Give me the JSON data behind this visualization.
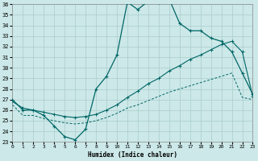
{
  "xlabel": "Humidex (Indice chaleur)",
  "bg_color": "#cce8e8",
  "line_color": "#006666",
  "grid_color": "#aacccc",
  "xlim": [
    0,
    23
  ],
  "ylim": [
    23,
    36
  ],
  "yticks": [
    23,
    24,
    25,
    26,
    27,
    28,
    29,
    30,
    31,
    32,
    33,
    34,
    35,
    36
  ],
  "xticks": [
    0,
    1,
    2,
    3,
    4,
    5,
    6,
    7,
    8,
    9,
    10,
    11,
    12,
    13,
    14,
    15,
    16,
    17,
    18,
    19,
    20,
    21,
    22,
    23
  ],
  "curve1_x": [
    0,
    1,
    2,
    3,
    4,
    5,
    6,
    7,
    8,
    9,
    10,
    11,
    12,
    13,
    14,
    15,
    16,
    17,
    18,
    19,
    20,
    21,
    22,
    23
  ],
  "curve1_y": [
    27.0,
    26.0,
    26.0,
    25.5,
    24.5,
    23.5,
    23.2,
    24.2,
    28.0,
    29.2,
    31.2,
    36.2,
    35.5,
    36.3,
    36.2,
    36.5,
    34.2,
    33.5,
    33.5,
    32.8,
    32.5,
    31.5,
    29.5,
    27.5
  ],
  "curve2_x": [
    0,
    1,
    2,
    3,
    4,
    5,
    6,
    7,
    8,
    9,
    10,
    11,
    12,
    13,
    14,
    15,
    16,
    17,
    18,
    19,
    20,
    21,
    22,
    23
  ],
  "curve2_y": [
    26.8,
    26.2,
    26.0,
    25.8,
    25.6,
    25.4,
    25.3,
    25.4,
    25.6,
    26.0,
    26.5,
    27.2,
    27.8,
    28.5,
    29.0,
    29.7,
    30.2,
    30.8,
    31.2,
    31.7,
    32.2,
    32.5,
    31.5,
    27.3
  ],
  "curve3_x": [
    0,
    1,
    2,
    3,
    4,
    5,
    6,
    7,
    8,
    9,
    10,
    11,
    12,
    13,
    14,
    15,
    16,
    17,
    18,
    19,
    20,
    21,
    22,
    23
  ],
  "curve3_y": [
    26.5,
    25.5,
    25.5,
    25.2,
    25.0,
    24.8,
    24.7,
    24.8,
    25.0,
    25.3,
    25.7,
    26.2,
    26.5,
    26.9,
    27.3,
    27.7,
    28.0,
    28.3,
    28.6,
    28.9,
    29.2,
    29.5,
    27.2,
    27.0
  ]
}
